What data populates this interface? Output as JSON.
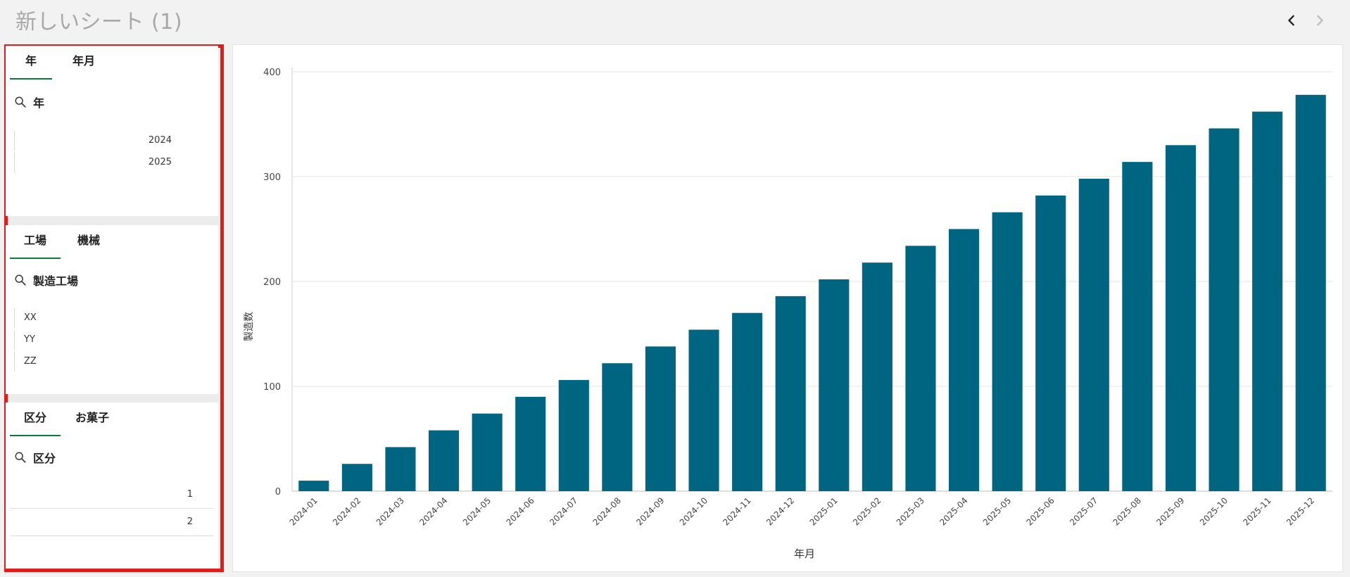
{
  "sheet": {
    "title": "新しいシート (1)"
  },
  "nav": {
    "prev_icon": "chevron-left-icon",
    "next_icon": "chevron-right-icon"
  },
  "filters": {
    "year_panel": {
      "tabs": [
        "年",
        "年月"
      ],
      "search_label": "年",
      "items": [
        "2024",
        "2025"
      ]
    },
    "factory_panel": {
      "tabs": [
        "工場",
        "機械"
      ],
      "search_label": "製造工場",
      "items": [
        "XX",
        "YY",
        "ZZ"
      ]
    },
    "category_panel": {
      "tabs": [
        "区分",
        "お菓子"
      ],
      "search_label": "区分",
      "items": [
        "1",
        "2"
      ]
    }
  },
  "colors": {
    "bar": "#006580",
    "active_tab": "#0b7a3b",
    "highlight_border": "#e21b1b"
  },
  "chart_data": {
    "type": "bar",
    "xlabel": "年月",
    "ylabel": "製造数",
    "ylim": [
      0,
      400
    ],
    "yticks": [
      0,
      100,
      200,
      300,
      400
    ],
    "grid": true,
    "categories": [
      "2024-01",
      "2024-02",
      "2024-03",
      "2024-04",
      "2024-05",
      "2024-06",
      "2024-07",
      "2024-08",
      "2024-09",
      "2024-10",
      "2024-11",
      "2024-12",
      "2025-01",
      "2025-02",
      "2025-03",
      "2025-04",
      "2025-05",
      "2025-06",
      "2025-07",
      "2025-08",
      "2025-09",
      "2025-10",
      "2025-11",
      "2025-12"
    ],
    "values": [
      10,
      26,
      42,
      58,
      74,
      90,
      106,
      122,
      138,
      154,
      170,
      186,
      202,
      218,
      234,
      250,
      266,
      282,
      298,
      314,
      330,
      346,
      362,
      378
    ]
  }
}
